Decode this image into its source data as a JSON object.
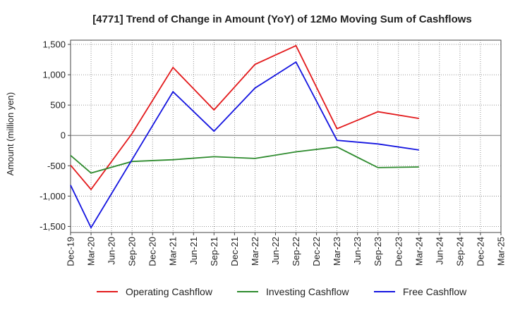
{
  "chart_data": {
    "type": "line",
    "title": "[4771]  Trend of Change in Amount (YoY) of 12Mo Moving Sum of Cashflows",
    "xlabel": "",
    "ylabel": "Amount (million yen)",
    "ylim": [
      -1600,
      1570
    ],
    "yticks": [
      1500,
      1000,
      500,
      0,
      -500,
      -1000,
      -1500
    ],
    "ytick_labels": [
      "1,500",
      "1,000",
      "500",
      "0",
      "-500",
      "-1,000",
      "-1,500"
    ],
    "categories": [
      "Dec-19",
      "Mar-20",
      "Jun-20",
      "Sep-20",
      "Dec-20",
      "Mar-21",
      "Jun-21",
      "Sep-21",
      "Dec-21",
      "Mar-22",
      "Jun-22",
      "Sep-22",
      "Dec-22",
      "Mar-23",
      "Jun-23",
      "Sep-23",
      "Dec-23",
      "Mar-24",
      "Jun-24",
      "Sep-24",
      "Dec-24",
      "Mar-25"
    ],
    "grid": true,
    "legend_position": "bottom",
    "series": [
      {
        "name": "Operating Cashflow",
        "color": "#e31a1c",
        "values": [
          -490,
          -890,
          null,
          30,
          null,
          1120,
          null,
          420,
          null,
          1170,
          null,
          1480,
          null,
          110,
          null,
          390,
          null,
          280,
          null,
          null,
          null,
          null
        ]
      },
      {
        "name": "Investing Cashflow",
        "color": "#2e8b2e",
        "values": [
          -330,
          -620,
          null,
          -430,
          null,
          -400,
          null,
          -350,
          null,
          -380,
          null,
          -270,
          null,
          -190,
          null,
          -530,
          null,
          -520,
          null,
          null,
          null,
          null
        ]
      },
      {
        "name": "Free Cashflow",
        "color": "#1414e0",
        "values": [
          -820,
          -1520,
          null,
          -400,
          null,
          720,
          null,
          70,
          null,
          780,
          null,
          1210,
          null,
          -80,
          null,
          -140,
          null,
          -240,
          null,
          null,
          null,
          null
        ]
      }
    ]
  }
}
